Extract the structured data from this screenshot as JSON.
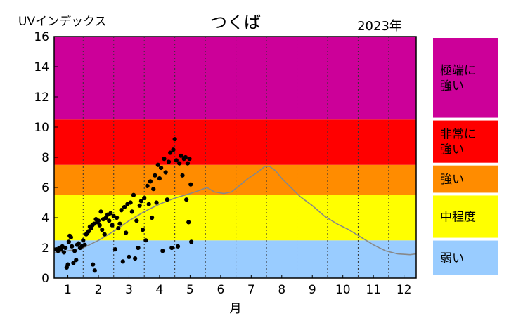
{
  "chart_data": {
    "type": "scatter",
    "title": "つくば",
    "ylabel": "UVインデックス",
    "year_label": "2023年",
    "xlabel": "月",
    "xlim": [
      0.55,
      12.4
    ],
    "ylim": [
      0,
      16
    ],
    "x_ticks": [
      1,
      2,
      3,
      4,
      5,
      6,
      7,
      8,
      9,
      10,
      11,
      12
    ],
    "y_ticks": [
      0,
      2,
      4,
      6,
      8,
      10,
      12,
      14,
      16
    ],
    "grid": true,
    "bands": [
      {
        "label": "弱い",
        "from": 0,
        "to": 2.5,
        "color": "#99ccff"
      },
      {
        "label": "中程度",
        "from": 2.5,
        "to": 5.5,
        "color": "#ffff00"
      },
      {
        "label": "強い",
        "from": 5.5,
        "to": 7.5,
        "color": "#ff8c00"
      },
      {
        "label": "非常に強い",
        "from": 7.5,
        "to": 10.5,
        "color": "#ff0000"
      },
      {
        "label": "極端に強い",
        "from": 10.5,
        "to": 16,
        "color": "#cc0099"
      }
    ],
    "series": [
      {
        "kind": "points",
        "color": "#000000",
        "points": [
          [
            0.62,
            1.9
          ],
          [
            0.68,
            1.8
          ],
          [
            0.72,
            2.0
          ],
          [
            0.78,
            1.9
          ],
          [
            0.82,
            2.1
          ],
          [
            0.87,
            1.7
          ],
          [
            0.92,
            2.0
          ],
          [
            0.96,
            0.7
          ],
          [
            1.0,
            0.9
          ],
          [
            1.03,
            2.4
          ],
          [
            1.06,
            2.8
          ],
          [
            1.1,
            2.7
          ],
          [
            1.13,
            2.1
          ],
          [
            1.18,
            1.0
          ],
          [
            1.22,
            1.8
          ],
          [
            1.27,
            1.2
          ],
          [
            1.3,
            2.2
          ],
          [
            1.35,
            2.3
          ],
          [
            1.4,
            2.0
          ],
          [
            1.45,
            2.1
          ],
          [
            1.5,
            2.5
          ],
          [
            1.55,
            2.2
          ],
          [
            1.6,
            2.9
          ],
          [
            1.64,
            3.0
          ],
          [
            1.68,
            3.1
          ],
          [
            1.72,
            3.4
          ],
          [
            1.76,
            3.3
          ],
          [
            1.8,
            3.5
          ],
          [
            1.82,
            0.9
          ],
          [
            1.86,
            3.6
          ],
          [
            1.88,
            0.5
          ],
          [
            1.92,
            3.9
          ],
          [
            1.96,
            3.7
          ],
          [
            2.0,
            3.8
          ],
          [
            2.04,
            3.5
          ],
          [
            2.08,
            4.4
          ],
          [
            2.12,
            3.2
          ],
          [
            2.16,
            3.9
          ],
          [
            2.2,
            2.9
          ],
          [
            2.25,
            4.0
          ],
          [
            2.3,
            4.2
          ],
          [
            2.35,
            3.8
          ],
          [
            2.4,
            4.3
          ],
          [
            2.45,
            3.5
          ],
          [
            2.5,
            4.1
          ],
          [
            2.55,
            1.9
          ],
          [
            2.6,
            4.0
          ],
          [
            2.65,
            3.3
          ],
          [
            2.7,
            3.6
          ],
          [
            2.75,
            4.5
          ],
          [
            2.8,
            1.1
          ],
          [
            2.85,
            4.7
          ],
          [
            2.9,
            3.0
          ],
          [
            2.95,
            4.9
          ],
          [
            3.0,
            1.4
          ],
          [
            3.05,
            5.0
          ],
          [
            3.1,
            4.4
          ],
          [
            3.15,
            5.5
          ],
          [
            3.2,
            1.3
          ],
          [
            3.25,
            3.8
          ],
          [
            3.3,
            2.0
          ],
          [
            3.35,
            4.8
          ],
          [
            3.4,
            5.1
          ],
          [
            3.45,
            3.2
          ],
          [
            3.5,
            5.3
          ],
          [
            3.55,
            2.5
          ],
          [
            3.6,
            6.1
          ],
          [
            3.65,
            4.9
          ],
          [
            3.7,
            6.4
          ],
          [
            3.75,
            4.0
          ],
          [
            3.8,
            5.9
          ],
          [
            3.85,
            6.8
          ],
          [
            3.9,
            5.0
          ],
          [
            3.95,
            7.5
          ],
          [
            4.0,
            6.6
          ],
          [
            4.05,
            7.3
          ],
          [
            4.1,
            1.8
          ],
          [
            4.15,
            7.9
          ],
          [
            4.2,
            7.0
          ],
          [
            4.25,
            5.2
          ],
          [
            4.3,
            7.7
          ],
          [
            4.35,
            8.3
          ],
          [
            4.4,
            2.0
          ],
          [
            4.45,
            8.5
          ],
          [
            4.5,
            9.2
          ],
          [
            4.55,
            7.8
          ],
          [
            4.6,
            2.1
          ],
          [
            4.65,
            7.6
          ],
          [
            4.7,
            8.1
          ],
          [
            4.75,
            6.8
          ],
          [
            4.8,
            7.9
          ],
          [
            4.85,
            8.0
          ],
          [
            4.88,
            5.2
          ],
          [
            4.92,
            7.6
          ],
          [
            4.95,
            3.7
          ],
          [
            4.98,
            7.9
          ],
          [
            5.02,
            6.2
          ],
          [
            5.04,
            2.4
          ]
        ]
      },
      {
        "kind": "line",
        "color": "#888888",
        "points": [
          [
            0.55,
            1.7
          ],
          [
            1.0,
            1.8
          ],
          [
            1.5,
            2.0
          ],
          [
            2.0,
            2.5
          ],
          [
            2.5,
            3.1
          ],
          [
            3.0,
            3.8
          ],
          [
            3.5,
            4.4
          ],
          [
            4.0,
            4.9
          ],
          [
            4.5,
            5.3
          ],
          [
            5.0,
            5.6
          ],
          [
            5.3,
            5.8
          ],
          [
            5.55,
            6.0
          ],
          [
            5.8,
            5.7
          ],
          [
            6.1,
            5.6
          ],
          [
            6.35,
            5.7
          ],
          [
            6.6,
            6.1
          ],
          [
            6.9,
            6.6
          ],
          [
            7.2,
            7.0
          ],
          [
            7.45,
            7.4
          ],
          [
            7.6,
            7.4
          ],
          [
            7.8,
            7.1
          ],
          [
            8.0,
            6.6
          ],
          [
            8.3,
            6.0
          ],
          [
            8.6,
            5.4
          ],
          [
            9.0,
            4.8
          ],
          [
            9.4,
            4.1
          ],
          [
            9.8,
            3.6
          ],
          [
            10.2,
            3.2
          ],
          [
            10.6,
            2.7
          ],
          [
            11.0,
            2.2
          ],
          [
            11.4,
            1.8
          ],
          [
            11.8,
            1.6
          ],
          [
            12.2,
            1.55
          ],
          [
            12.4,
            1.6
          ]
        ]
      }
    ]
  }
}
